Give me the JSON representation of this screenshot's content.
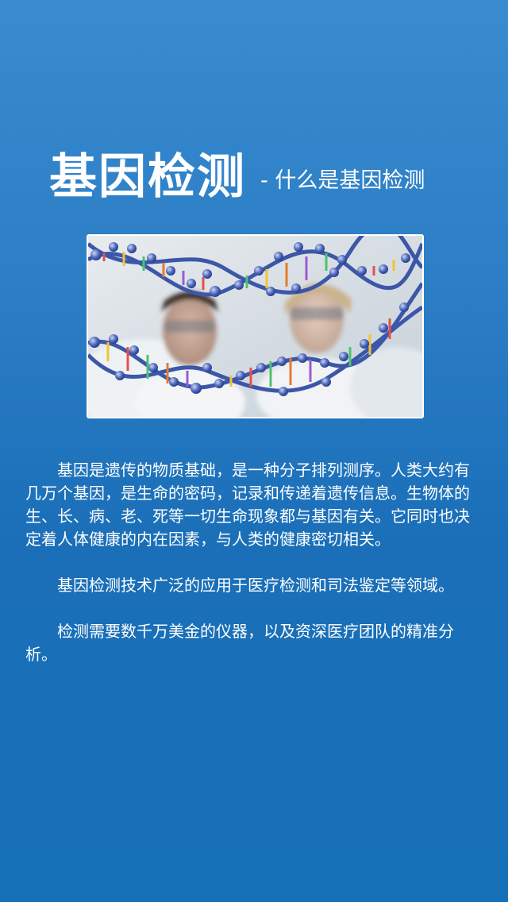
{
  "header": {
    "title": "基因检测",
    "subtitle": "- 什么是基因检测"
  },
  "hero_image": {
    "icon": "dna-helix-researchers-image"
  },
  "content": {
    "paragraphs": [
      "基因是遗传的物质基础，是一种分子排列测序。人类大约有几万个基因，是生命的密码，记录和传递着遗传信息。生物体的生、长、病、老、死等一切生命现象都与基因有关。它同时也决定着人体健康的内在因素，与人类的健康密切相关。",
      "基因检测技术广泛的应用于医疗检测和司法鉴定等领域。",
      "检测需要数千万美金的仪器，以及资深医疗团队的精准分析。"
    ]
  },
  "colors": {
    "background_top": "#3a8cd0",
    "background_bottom": "#1670b8",
    "text": "#ffffff"
  }
}
